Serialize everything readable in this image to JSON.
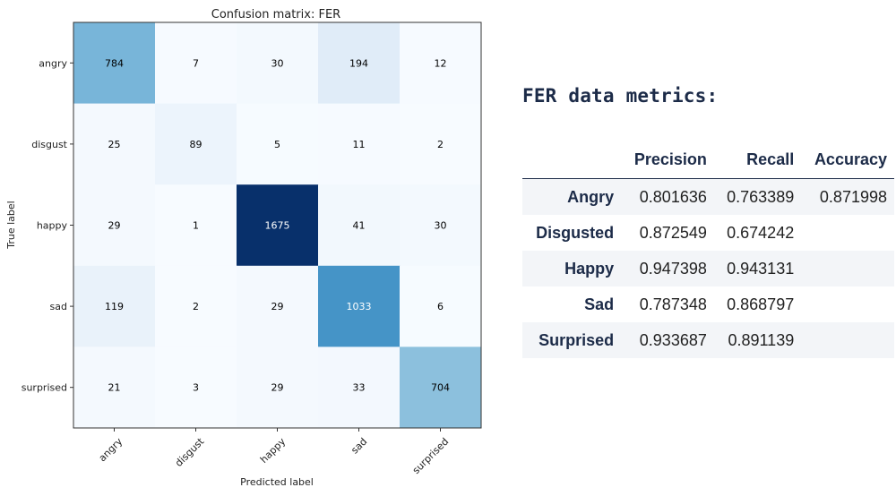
{
  "chart_data": {
    "type": "heatmap",
    "title": "Confusion matrix: FER",
    "xlabel": "Predicted label",
    "ylabel": "True label",
    "x_categories": [
      "angry",
      "disgust",
      "happy",
      "sad",
      "surprised"
    ],
    "y_categories": [
      "angry",
      "disgust",
      "happy",
      "sad",
      "surprised"
    ],
    "values": [
      [
        784,
        7,
        30,
        194,
        12
      ],
      [
        25,
        89,
        5,
        11,
        2
      ],
      [
        29,
        1,
        1675,
        41,
        30
      ],
      [
        119,
        2,
        29,
        1033,
        6
      ],
      [
        21,
        3,
        29,
        33,
        704
      ]
    ],
    "colormap": "Blues",
    "vmin": 0,
    "vmax": 1675,
    "light_text_color": "#ffffff",
    "dark_text_color": "#000000"
  },
  "metrics": {
    "title": "FER data metrics:",
    "columns": [
      "",
      "Precision",
      "Recall",
      "Accuracy"
    ],
    "rows": [
      {
        "label": "Angry",
        "precision": "0.801636",
        "recall": "0.763389",
        "accuracy": "0.871998"
      },
      {
        "label": "Disgusted",
        "precision": "0.872549",
        "recall": "0.674242",
        "accuracy": ""
      },
      {
        "label": "Happy",
        "precision": "0.947398",
        "recall": "0.943131",
        "accuracy": ""
      },
      {
        "label": "Sad",
        "precision": "0.787348",
        "recall": "0.868797",
        "accuracy": ""
      },
      {
        "label": "Surprised",
        "precision": "0.933687",
        "recall": "0.891139",
        "accuracy": ""
      }
    ]
  }
}
